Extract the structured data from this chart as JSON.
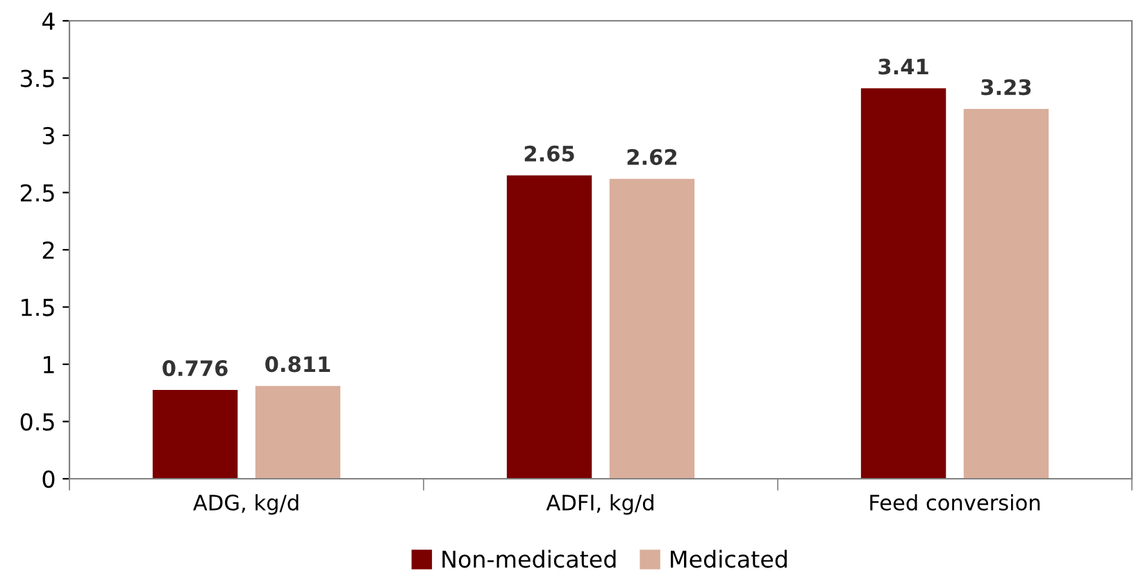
{
  "chart_data": {
    "type": "bar",
    "categories": [
      "ADG, kg/d",
      "ADFI, kg/d",
      "Feed conversion"
    ],
    "series": [
      {
        "name": "Non-medicated",
        "color": "#7b0000",
        "values": [
          0.776,
          2.65,
          3.41
        ]
      },
      {
        "name": "Medicated",
        "color": "#d9ae9b",
        "values": [
          0.811,
          2.62,
          3.23
        ]
      }
    ],
    "ylim": [
      0,
      4
    ],
    "yticks": [
      0,
      0.5,
      1,
      1.5,
      2,
      2.5,
      3,
      3.5,
      4
    ],
    "grid": false,
    "legend": "bottom",
    "data_labels": true
  }
}
